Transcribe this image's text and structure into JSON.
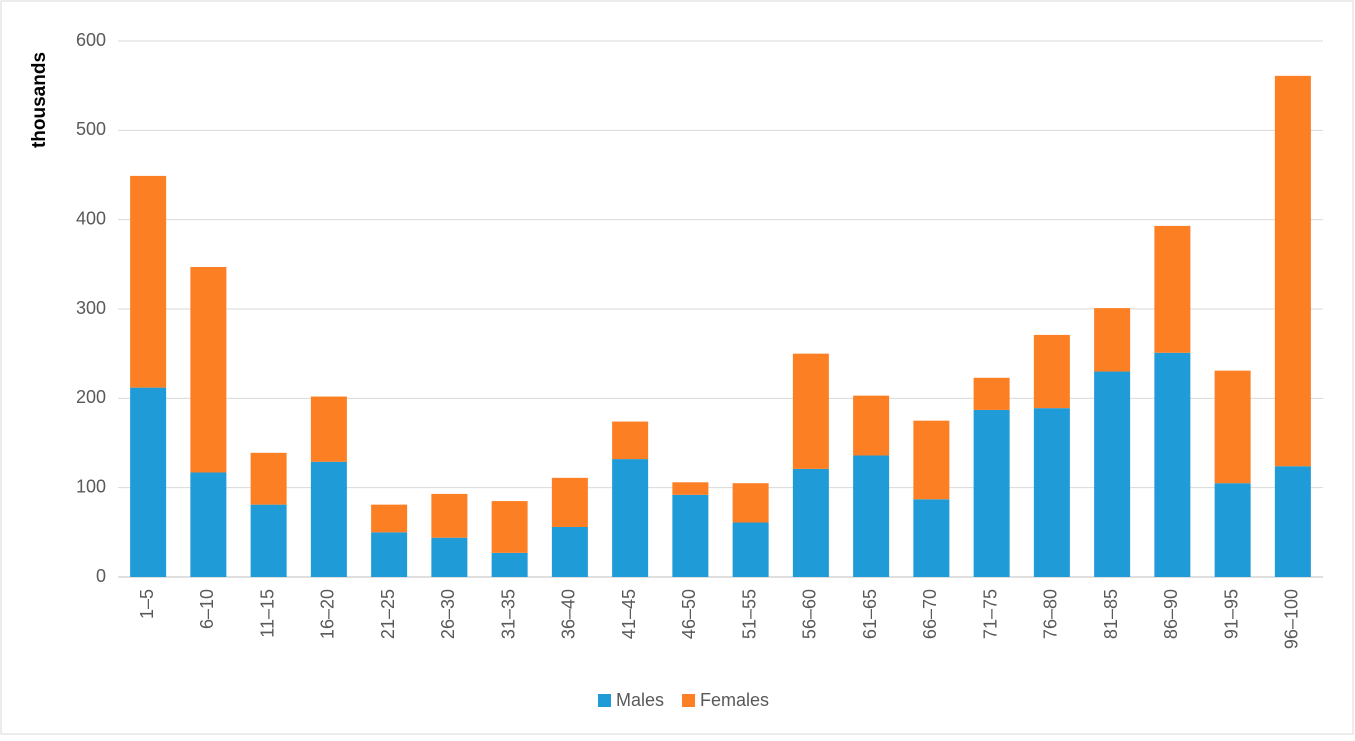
{
  "chart_data": {
    "type": "stacked_bar",
    "y_label": "thousands",
    "categories": [
      "1–5",
      "6–10",
      "11–15",
      "16–20",
      "21–25",
      "26–30",
      "31–35",
      "36–40",
      "41–45",
      "46–50",
      "51–55",
      "56–60",
      "61–65",
      "66–70",
      "71–75",
      "76–80",
      "81–85",
      "86–90",
      "91–95",
      "96–100"
    ],
    "series": [
      {
        "name": "Males",
        "color": "#1f9bd7",
        "values": [
          212,
          117,
          81,
          129,
          50,
          44,
          27,
          56,
          132,
          92,
          61,
          121,
          136,
          87,
          187,
          189,
          230,
          251,
          105,
          124
        ]
      },
      {
        "name": "Females",
        "color": "#fd7f23",
        "values": [
          237,
          230,
          58,
          73,
          31,
          49,
          58,
          55,
          42,
          14,
          44,
          129,
          67,
          88,
          36,
          82,
          71,
          142,
          126,
          437
        ]
      }
    ],
    "ylim": [
      0,
      600
    ],
    "yticks": [
      0,
      100,
      200,
      300,
      400,
      500,
      600
    ],
    "grid": true,
    "legend": "bottom"
  }
}
